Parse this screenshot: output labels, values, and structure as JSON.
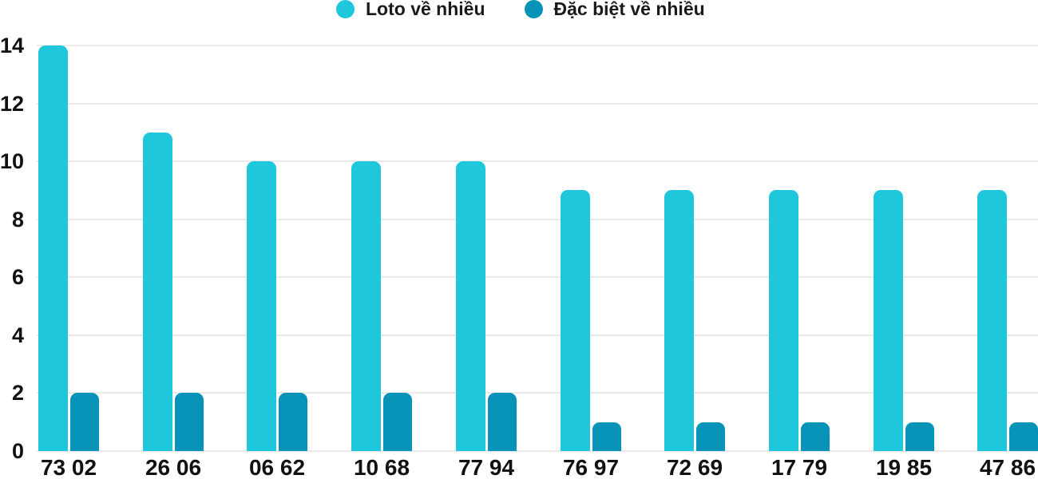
{
  "legend": {
    "items": [
      {
        "label": "Loto về nhiều",
        "color": "#1EC7DB"
      },
      {
        "label": "Đặc biệt về nhiều",
        "color": "#0793B7"
      }
    ]
  },
  "chart_data": {
    "type": "bar",
    "title": "",
    "xlabel": "",
    "ylabel": "",
    "categories": [
      "73 02",
      "26 06",
      "06 62",
      "10 68",
      "77 94",
      "76 97",
      "72 69",
      "17 79",
      "19 85",
      "47 86"
    ],
    "series": [
      {
        "name": "Loto về nhiều",
        "color": "#1EC7DB",
        "values": [
          14,
          11,
          10,
          10,
          10,
          9,
          9,
          9,
          9,
          9
        ]
      },
      {
        "name": "Đặc biệt về nhiều",
        "color": "#0793B7",
        "values": [
          2,
          2,
          2,
          2,
          2,
          1,
          1,
          1,
          1,
          1
        ]
      }
    ],
    "ylim": [
      0,
      14
    ],
    "yticks": [
      0,
      2,
      4,
      6,
      8,
      10,
      12,
      14
    ],
    "grid": true,
    "legend_position": "top",
    "colors": {
      "grid": "#EAEAEA",
      "axis_text": "#111111",
      "background": "#FFFFFF"
    }
  }
}
